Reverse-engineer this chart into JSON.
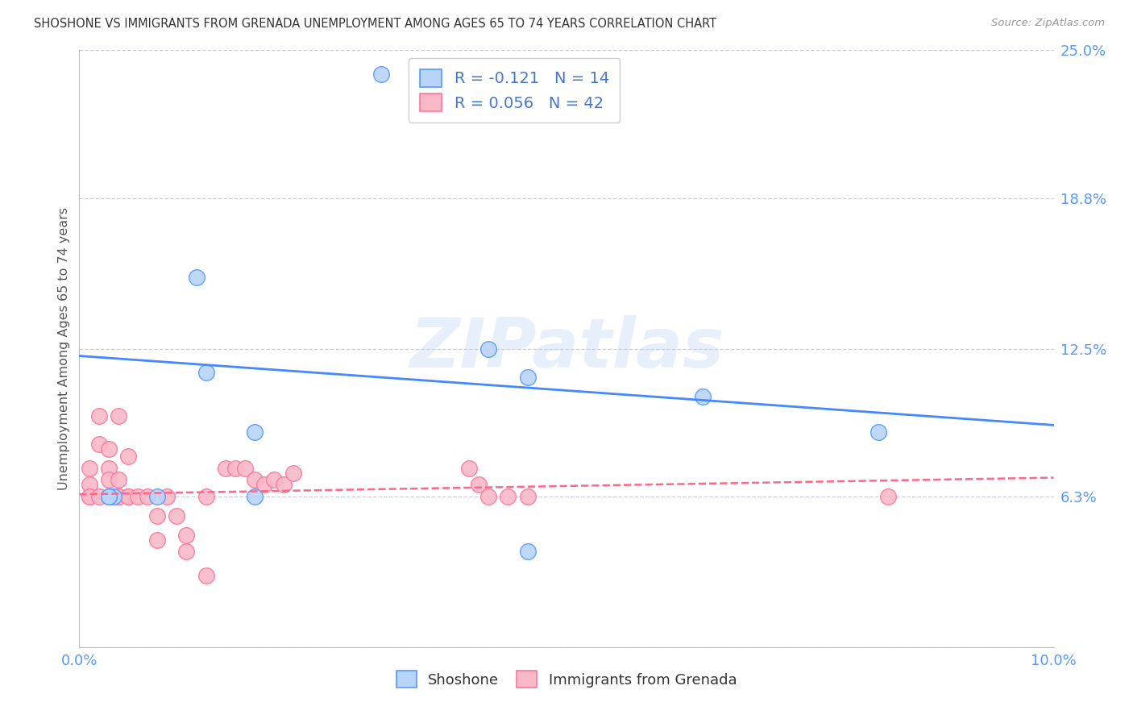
{
  "title": "SHOSHONE VS IMMIGRANTS FROM GRENADA UNEMPLOYMENT AMONG AGES 65 TO 74 YEARS CORRELATION CHART",
  "source": "Source: ZipAtlas.com",
  "ylabel": "Unemployment Among Ages 65 to 74 years",
  "xlim": [
    0.0,
    0.1
  ],
  "ylim": [
    0.0,
    0.25
  ],
  "yticks": [
    0.0,
    0.063,
    0.125,
    0.188,
    0.25
  ],
  "ytick_labels": [
    "",
    "6.3%",
    "12.5%",
    "18.8%",
    "25.0%"
  ],
  "xticks": [
    0.0,
    0.02,
    0.04,
    0.06,
    0.08,
    0.1
  ],
  "xtick_labels": [
    "0.0%",
    "",
    "",
    "",
    "",
    "10.0%"
  ],
  "watermark_text": "ZIPatlas",
  "shoshone_fill": "#b8d4f8",
  "grenada_fill": "#f8b8c8",
  "shoshone_edge": "#5599ff",
  "grenada_edge": "#ff7799",
  "shoshone_line": "#4488ff",
  "grenada_line": "#ff6688",
  "shoshone_R": "-0.121",
  "shoshone_N": "14",
  "grenada_R": "0.056",
  "grenada_N": "42",
  "legend_text_color": "#4477cc",
  "shoshone_points_x": [
    0.0035,
    0.003,
    0.003,
    0.008,
    0.012,
    0.013,
    0.018,
    0.018,
    0.042,
    0.046,
    0.046,
    0.064,
    0.082,
    0.031
  ],
  "shoshone_points_y": [
    0.063,
    0.063,
    0.063,
    0.063,
    0.155,
    0.115,
    0.09,
    0.063,
    0.125,
    0.113,
    0.04,
    0.105,
    0.09,
    0.24
  ],
  "grenada_points_x": [
    0.001,
    0.001,
    0.001,
    0.001,
    0.002,
    0.002,
    0.002,
    0.003,
    0.003,
    0.003,
    0.003,
    0.004,
    0.004,
    0.004,
    0.004,
    0.005,
    0.005,
    0.005,
    0.006,
    0.007,
    0.008,
    0.008,
    0.009,
    0.01,
    0.011,
    0.011,
    0.013,
    0.013,
    0.015,
    0.016,
    0.017,
    0.018,
    0.019,
    0.02,
    0.021,
    0.022,
    0.04,
    0.041,
    0.042,
    0.044,
    0.046,
    0.083
  ],
  "grenada_points_y": [
    0.075,
    0.068,
    0.063,
    0.063,
    0.097,
    0.085,
    0.063,
    0.083,
    0.075,
    0.07,
    0.063,
    0.063,
    0.097,
    0.07,
    0.063,
    0.063,
    0.08,
    0.063,
    0.063,
    0.063,
    0.055,
    0.045,
    0.063,
    0.055,
    0.047,
    0.04,
    0.03,
    0.063,
    0.075,
    0.075,
    0.075,
    0.07,
    0.068,
    0.07,
    0.068,
    0.073,
    0.075,
    0.068,
    0.063,
    0.063,
    0.063,
    0.063
  ],
  "shoshone_trend_x": [
    0.0,
    0.1
  ],
  "shoshone_trend_y": [
    0.122,
    0.093
  ],
  "grenada_trend_x": [
    0.0,
    0.1
  ],
  "grenada_trend_y": [
    0.064,
    0.071
  ],
  "background_color": "#ffffff",
  "grid_color": "#ccccdd",
  "axis_label_color": "#5599ff",
  "title_color": "#333333"
}
